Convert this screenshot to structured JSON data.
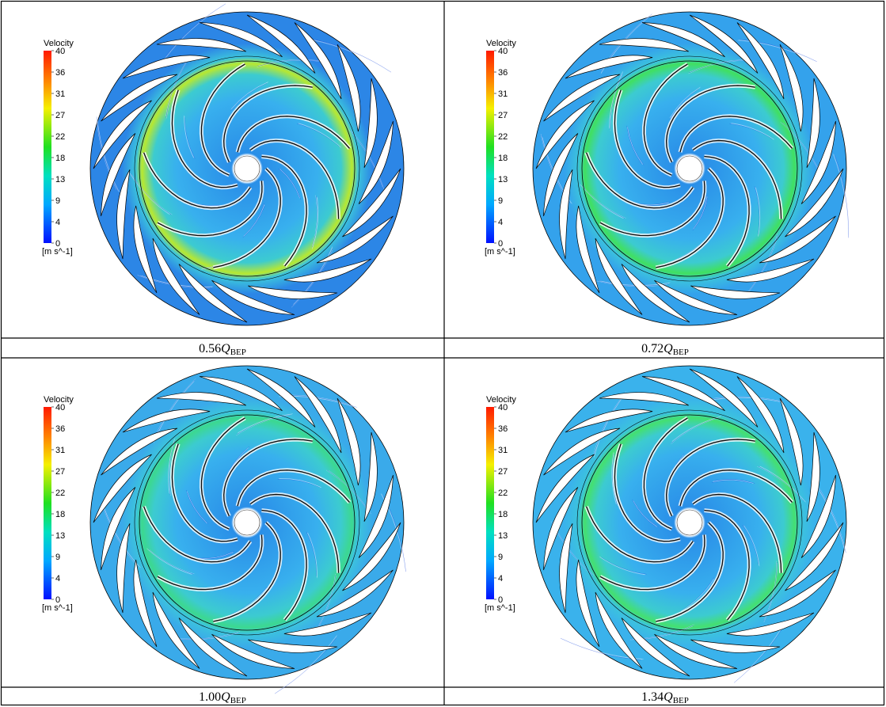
{
  "panels": [
    {
      "caption": {
        "value": "0.56",
        "symbol": "Q",
        "subscript": "BEP"
      }
    },
    {
      "caption": {
        "value": "0.72",
        "symbol": "Q",
        "subscript": "BEP"
      }
    },
    {
      "caption": {
        "value": "1.00",
        "symbol": "Q",
        "subscript": "BEP"
      }
    },
    {
      "caption": {
        "value": "1.34",
        "symbol": "Q",
        "subscript": "BEP"
      }
    }
  ],
  "legend": {
    "title": "Velocity",
    "ticks": [
      "40",
      "36",
      "31",
      "27",
      "22",
      "18",
      "13",
      "9",
      "4",
      "0"
    ],
    "unit": "[m s^-1]"
  }
}
